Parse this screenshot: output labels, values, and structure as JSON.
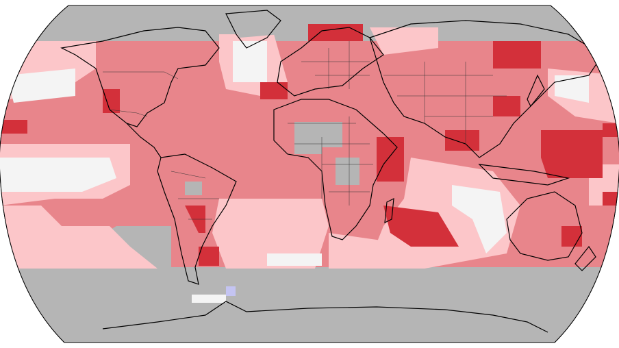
{
  "map": {
    "projection": "robinson",
    "colors": {
      "no_data": "#b5b5b5",
      "near_average": "#f4f4f4",
      "warm_1": "#fcc6c9",
      "warm_2": "#e8858b",
      "warm_3": "#d3303a",
      "cool_1": "#c4c4f2",
      "coastline": "#000000",
      "border": "#333333"
    },
    "legend": []
  }
}
